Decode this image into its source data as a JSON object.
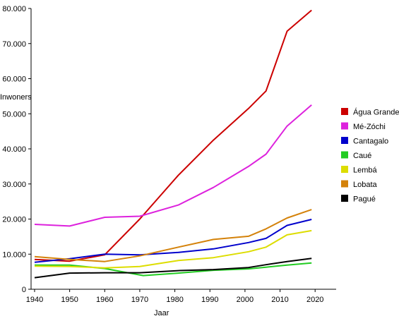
{
  "chart_data": {
    "type": "line",
    "title": "",
    "xlabel": "Jaar",
    "ylabel": "Inwoners",
    "xlim": [
      1939,
      2026
    ],
    "ylim": [
      0,
      80000
    ],
    "x_ticks": [
      1940,
      1950,
      1960,
      1970,
      1980,
      1990,
      2000,
      2010,
      2020
    ],
    "x_tick_labels": [
      "1940",
      "1950",
      "1960",
      "1970",
      "1980",
      "1990",
      "2000",
      "2010",
      "2020"
    ],
    "y_ticks": [
      0,
      10000,
      20000,
      30000,
      40000,
      50000,
      60000,
      70000,
      80000
    ],
    "y_tick_labels": [
      "0",
      "10.000",
      "20.000",
      "30.000",
      "40.000",
      "50.000",
      "60.000",
      "70.000",
      "80.000"
    ],
    "grid": false,
    "legend_position": "right",
    "series": [
      {
        "name": "Água Grande",
        "color": "#cc0000",
        "points": [
          [
            1940,
            8500
          ],
          [
            1950,
            8000
          ],
          [
            1960,
            9800
          ],
          [
            1970,
            20000
          ],
          [
            1981,
            32500
          ],
          [
            1991,
            42500
          ],
          [
            2001,
            51500
          ],
          [
            2006,
            56500
          ],
          [
            2012,
            73500
          ],
          [
            2019,
            79500
          ]
        ]
      },
      {
        "name": "Mé-Zóchi",
        "color": "#dd22dd",
        "points": [
          [
            1940,
            18500
          ],
          [
            1950,
            18000
          ],
          [
            1960,
            20500
          ],
          [
            1970,
            20800
          ],
          [
            1981,
            24000
          ],
          [
            1991,
            29000
          ],
          [
            2001,
            35000
          ],
          [
            2006,
            38500
          ],
          [
            2012,
            46500
          ],
          [
            2019,
            52500
          ]
        ]
      },
      {
        "name": "Cantagalo",
        "color": "#0000cc",
        "points": [
          [
            1940,
            7700
          ],
          [
            1950,
            8700
          ],
          [
            1960,
            10000
          ],
          [
            1970,
            9800
          ],
          [
            1981,
            10500
          ],
          [
            1991,
            11500
          ],
          [
            2001,
            13300
          ],
          [
            2006,
            14500
          ],
          [
            2012,
            18200
          ],
          [
            2019,
            19900
          ]
        ]
      },
      {
        "name": "Caué",
        "color": "#22cc22",
        "points": [
          [
            1940,
            6900
          ],
          [
            1950,
            6900
          ],
          [
            1960,
            5900
          ],
          [
            1971,
            3900
          ],
          [
            1981,
            4600
          ],
          [
            1991,
            5400
          ],
          [
            2001,
            5800
          ],
          [
            2006,
            6300
          ],
          [
            2012,
            6900
          ],
          [
            2019,
            7500
          ]
        ]
      },
      {
        "name": "Lembá",
        "color": "#dddd00",
        "points": [
          [
            1940,
            6600
          ],
          [
            1950,
            6500
          ],
          [
            1960,
            6100
          ],
          [
            1970,
            6500
          ],
          [
            1981,
            8200
          ],
          [
            1991,
            9000
          ],
          [
            2001,
            10700
          ],
          [
            2006,
            12000
          ],
          [
            2012,
            15500
          ],
          [
            2019,
            16700
          ]
        ]
      },
      {
        "name": "Lobata",
        "color": "#d4820a",
        "points": [
          [
            1940,
            9300
          ],
          [
            1950,
            8500
          ],
          [
            1960,
            7900
          ],
          [
            1970,
            9500
          ],
          [
            1981,
            12000
          ],
          [
            1991,
            14200
          ],
          [
            2001,
            15100
          ],
          [
            2006,
            17200
          ],
          [
            2012,
            20300
          ],
          [
            2019,
            22700
          ]
        ]
      },
      {
        "name": "Pagué",
        "color": "#000000",
        "points": [
          [
            1940,
            3300
          ],
          [
            1950,
            4600
          ],
          [
            1960,
            4700
          ],
          [
            1970,
            4700
          ],
          [
            1981,
            5300
          ],
          [
            1991,
            5600
          ],
          [
            2001,
            6200
          ],
          [
            2006,
            7000
          ],
          [
            2012,
            7900
          ],
          [
            2019,
            8800
          ]
        ]
      }
    ]
  }
}
